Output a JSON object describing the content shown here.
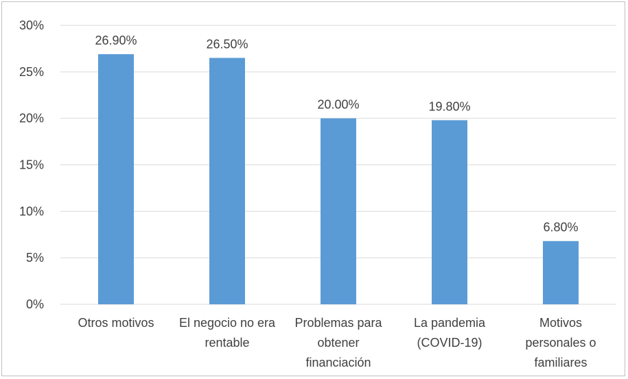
{
  "chart_data": {
    "type": "bar",
    "categories": [
      [
        "Otros motivos"
      ],
      [
        "El negocio no era",
        "rentable"
      ],
      [
        "Problemas para",
        "obtener",
        "financiación"
      ],
      [
        "La pandemia",
        "(COVID-19)"
      ],
      [
        "Motivos",
        "personales o",
        "familiares"
      ]
    ],
    "values": [
      26.9,
      26.5,
      20.0,
      19.8,
      6.8
    ],
    "data_labels": [
      "26.90%",
      "26.50%",
      "20.00%",
      "19.80%",
      "6.80%"
    ],
    "ylim": [
      0,
      30
    ],
    "y_ticks": [
      0,
      5,
      10,
      15,
      20,
      25,
      30
    ],
    "y_tick_labels": [
      "0%",
      "5%",
      "10%",
      "15%",
      "20%",
      "25%",
      "30%"
    ],
    "grid": true,
    "colors": {
      "bar": "#5b9bd5",
      "grid": "#d9d9d9",
      "text": "#404040"
    }
  }
}
